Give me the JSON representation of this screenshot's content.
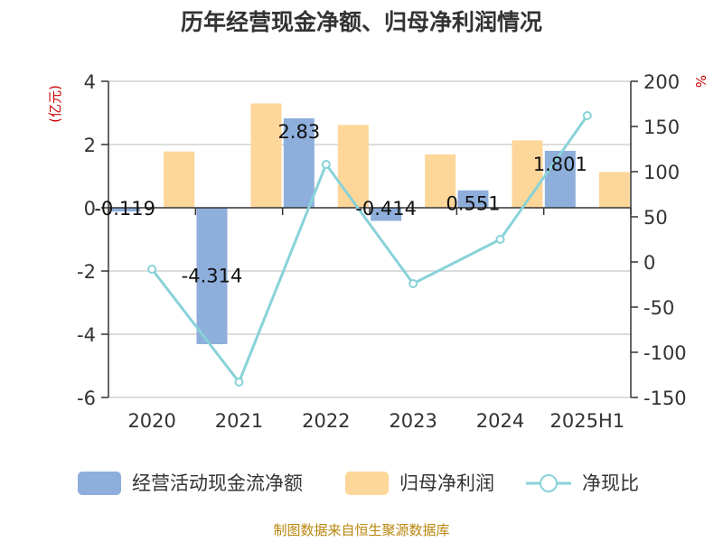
{
  "chart_data": {
    "type": "bar",
    "title": "历年经营现金净额、归母净利润情况",
    "categories": [
      "2020",
      "2021",
      "2022",
      "2023",
      "2024",
      "2025H1"
    ],
    "ylabel_left": "(亿元)",
    "ylabel_right": "%",
    "ylim_left": [
      -6,
      4
    ],
    "yticks_left": [
      4,
      2,
      0,
      -2,
      -4,
      -6
    ],
    "ylim_right": [
      -150,
      200
    ],
    "yticks_right": [
      200,
      150,
      100,
      50,
      0,
      -50,
      -100,
      -150
    ],
    "grid": true,
    "legend_position": "bottom",
    "series": [
      {
        "name": "经营活动现金流净额",
        "kind": "bar",
        "axis": "left",
        "values": [
          -0.119,
          -4.314,
          2.83,
          -0.414,
          0.551,
          1.801
        ],
        "labels": [
          "-0.119",
          "-4.314",
          "2.83",
          "-0.414",
          "0.551",
          "1.801"
        ]
      },
      {
        "name": "归母净利润",
        "kind": "bar",
        "axis": "left",
        "values": [
          1.78,
          3.3,
          2.62,
          1.69,
          2.13,
          1.13
        ]
      },
      {
        "name": "净现比",
        "kind": "line",
        "axis": "right",
        "values": [
          -8,
          -133,
          108,
          -24,
          25,
          162
        ]
      }
    ]
  },
  "colors": {
    "cash_flow": "#8eaedc",
    "net_profit": "#fdd699",
    "ratio": "#88d2d9",
    "axis_unit": "#cc0000",
    "source": "#b8860b",
    "grid": "#d0d0d0",
    "axis": "#333333"
  },
  "footer": {
    "source": "制图数据来自恒生聚源数据库"
  }
}
